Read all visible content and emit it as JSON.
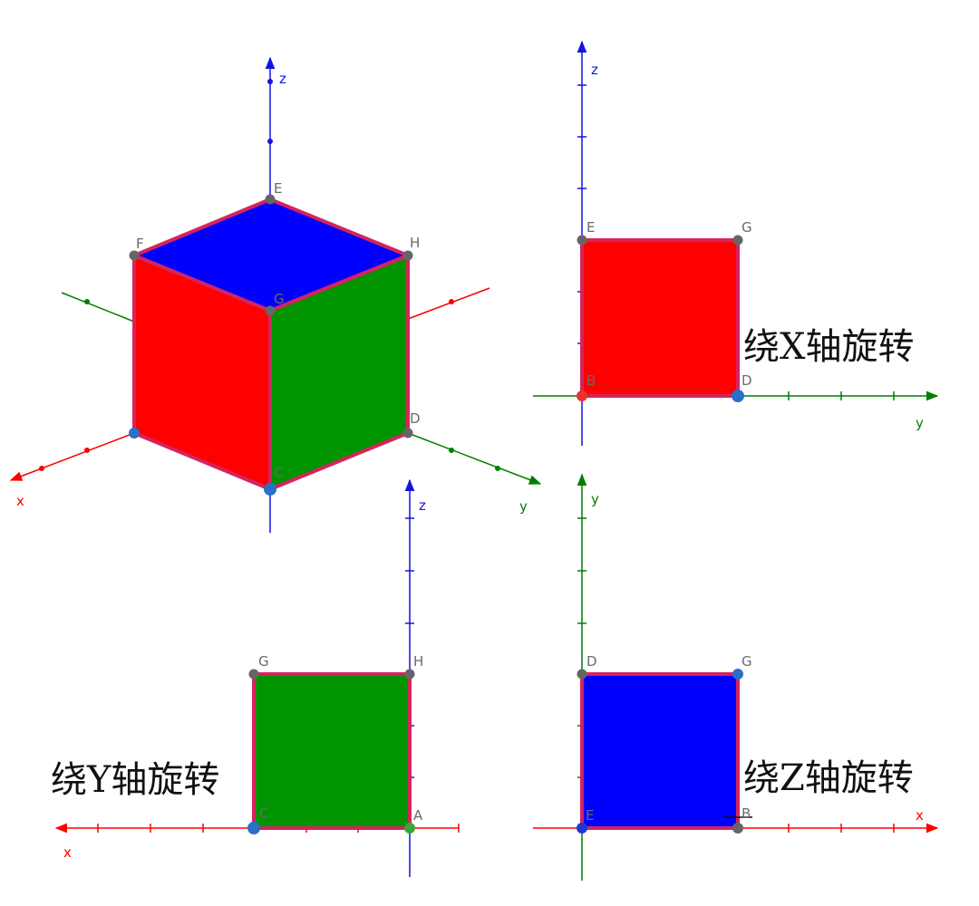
{
  "colors": {
    "red": "#ff0000",
    "green": "#009400",
    "blue": "#0000ff",
    "edge": "#d4245e",
    "axis_x": "#ff0000",
    "axis_y": "#007f00",
    "axis_z": "#1414e0",
    "point_gray": "#666666",
    "point_blue": "#2a6fc8"
  },
  "cube_view": {
    "axis_labels": {
      "x": "x",
      "y": "y",
      "z": "z"
    },
    "points": {
      "E": "E",
      "F": "F",
      "G": "G",
      "H": "H",
      "D": "D",
      "C": "C"
    }
  },
  "view_x": {
    "caption": "绕X轴旋转",
    "axis_labels": {
      "y": "y",
      "z": "z"
    },
    "points": {
      "top_left": "E",
      "top_right": "G",
      "bottom_left": "B",
      "bottom_right": "D"
    },
    "face_color": "red"
  },
  "view_y": {
    "caption": "绕Y轴旋转",
    "axis_labels": {
      "x": "x",
      "z": "z"
    },
    "points": {
      "top_left": "G",
      "top_right": "H",
      "bottom_left": "C",
      "bottom_right": "A"
    },
    "face_color": "green"
  },
  "view_z": {
    "caption": "绕Z轴旋转",
    "axis_labels": {
      "x": "x",
      "y": "y"
    },
    "points": {
      "top_left": "D",
      "top_right": "G",
      "bottom_left": "E",
      "bottom_right": "B"
    },
    "face_color": "blue"
  }
}
